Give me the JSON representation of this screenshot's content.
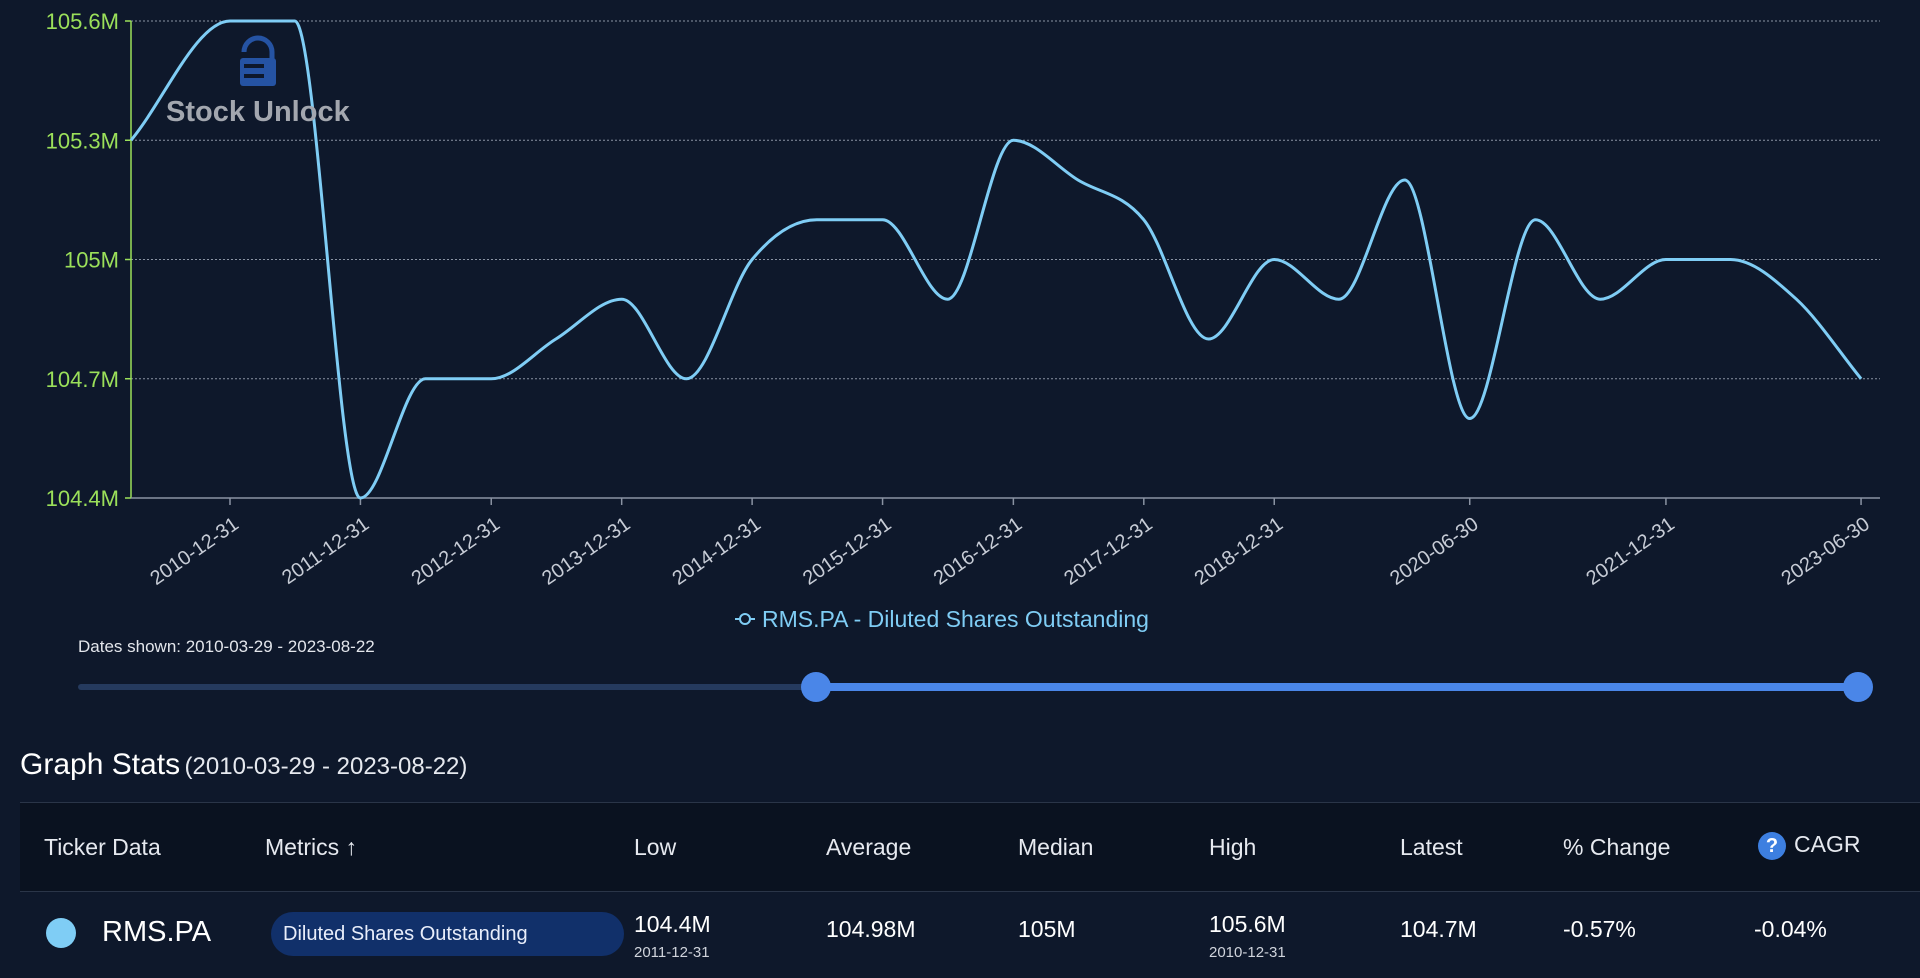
{
  "chart_data": {
    "type": "line",
    "x": [
      "2010-03-29",
      "2010-12-31",
      "2011-06-30",
      "2011-12-31",
      "2012-06-30",
      "2012-12-31",
      "2013-06-30",
      "2013-12-31",
      "2014-06-30",
      "2014-12-31",
      "2015-06-30",
      "2015-12-31",
      "2016-06-30",
      "2016-12-31",
      "2017-06-30",
      "2017-12-31",
      "2018-06-30",
      "2018-12-31",
      "2019-06-30",
      "2019-12-31",
      "2020-06-30",
      "2020-12-31",
      "2021-06-30",
      "2021-12-31",
      "2022-06-30",
      "2022-12-31",
      "2023-06-30"
    ],
    "series": [
      {
        "name": "RMS.PA - Diluted Shares Outstanding",
        "values": [
          105.3,
          105.6,
          105.6,
          104.4,
          104.7,
          104.7,
          104.8,
          104.9,
          104.7,
          105.0,
          105.1,
          105.1,
          104.9,
          105.3,
          105.2,
          105.1,
          104.8,
          105.0,
          104.9,
          105.2,
          104.6,
          105.1,
          104.9,
          105.0,
          105.0,
          104.9,
          104.7
        ]
      }
    ],
    "x_tick_labels": [
      "2010-12-31",
      "2011-12-31",
      "2012-12-31",
      "2013-12-31",
      "2014-12-31",
      "2015-12-31",
      "2016-12-31",
      "2017-12-31",
      "2018-12-31",
      "2020-06-30",
      "2021-12-31",
      "2023-06-30"
    ],
    "y_tick_labels": [
      "104.4M",
      "104.7M",
      "105M",
      "105.3M",
      "105.6M"
    ],
    "y_ticks": [
      104.4,
      104.7,
      105.0,
      105.3,
      105.6
    ],
    "ylim": [
      104.4,
      105.6
    ],
    "grid": true,
    "legend_position": "bottom-center",
    "line_color": "#7fcdf5",
    "axis_color": "#9be05a"
  },
  "watermark": {
    "text": "Stock Unlock",
    "icon": "padlock-icon"
  },
  "date_range": {
    "label": "Dates shown: 2010-03-29 - 2023-08-22"
  },
  "stats": {
    "title": "Graph Stats",
    "range": "(2010-03-29 - 2023-08-22)",
    "headers": {
      "ticker": "Ticker Data",
      "metrics": "Metrics ↑",
      "low": "Low",
      "average": "Average",
      "median": "Median",
      "high": "High",
      "latest": "Latest",
      "change": "% Change",
      "cagr": "CAGR",
      "cagr_icon": "?"
    },
    "row": {
      "ticker": "RMS.PA",
      "metric": "Diluted Shares Outstanding",
      "low": "104.4M",
      "low_date": "2011-12-31",
      "average": "104.98M",
      "median": "105M",
      "high": "105.6M",
      "high_date": "2010-12-31",
      "latest": "104.7M",
      "change": "-0.57%",
      "cagr": "-0.04%",
      "color": "#7fcdf5"
    }
  }
}
